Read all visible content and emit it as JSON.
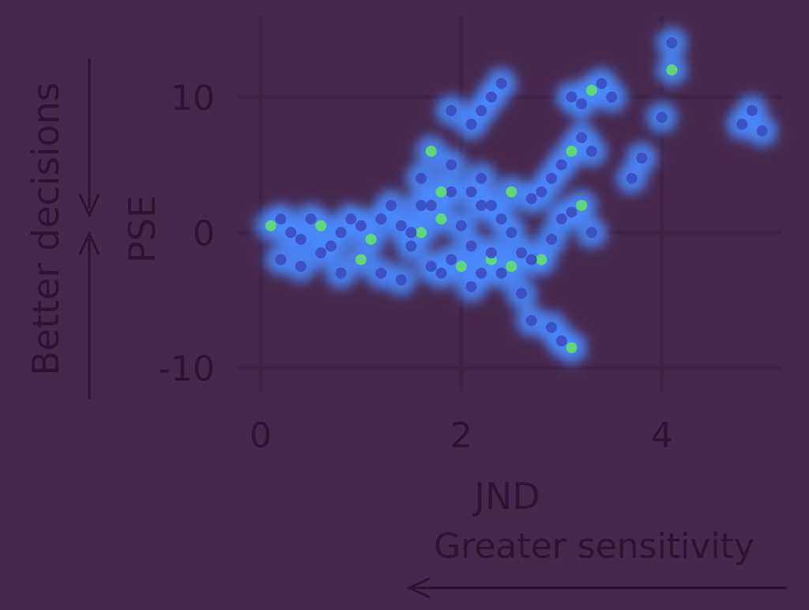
{
  "chart_data": {
    "type": "scatter",
    "title": "",
    "xlabel": "JND",
    "ylabel": "PSE",
    "x_annotation": "Greater sensitivity",
    "y_annotation": "Better decisions",
    "xlim": [
      0,
      5.2
    ],
    "ylim": [
      -12,
      16
    ],
    "xticks": [
      "0",
      "2",
      "4"
    ],
    "yticks": [
      "10",
      "0",
      "-10"
    ],
    "grid": true,
    "colors": {
      "background": "#46284f",
      "grid": "#3e2347",
      "text": "#2a1430",
      "point": "#3b4ec0",
      "glow": "#4a8bff",
      "hot": "#63e06a"
    },
    "series": [
      {
        "x": [
          0.1,
          0.2,
          0.3,
          0.4,
          0.5,
          0.6,
          0.7,
          0.8,
          0.9,
          1.0,
          1.1,
          1.2,
          1.3,
          1.4,
          1.5,
          1.6,
          0.2,
          0.4,
          0.6,
          0.8,
          1.0,
          1.2,
          1.4,
          1.5,
          1.6,
          1.8,
          1.9,
          2.0,
          2.1,
          2.2,
          2.3,
          2.4,
          2.5,
          2.6,
          2.7,
          2.8,
          2.9,
          1.7,
          1.8,
          1.9,
          2.0,
          2.1,
          2.2,
          2.3,
          2.4,
          2.5,
          2.6,
          2.7,
          1.6,
          1.7,
          1.8,
          1.9,
          2.1,
          2.2,
          2.3,
          2.5,
          2.1,
          2.2,
          2.3,
          2.4,
          1.7,
          1.9,
          2.8,
          2.9,
          3.0,
          3.1,
          3.2,
          3.3,
          3.1,
          3.2,
          3.3,
          3.4,
          3.5,
          3.0,
          3.1,
          3.2,
          3.3,
          2.7,
          2.9,
          3.0,
          3.1,
          4.0,
          3.8,
          3.7,
          4.1,
          4.1,
          4.8,
          4.9,
          5.0
        ],
        "y": [
          0.5,
          1,
          0,
          -0.5,
          1,
          0.5,
          -1,
          0,
          1,
          0.5,
          -0.5,
          1,
          2,
          0.5,
          -1,
          0,
          -2,
          -2.5,
          -1.5,
          -3,
          -2,
          -3,
          -3.5,
          0,
          2,
          1,
          3,
          0.5,
          -1,
          2,
          -2,
          1,
          0,
          -1.5,
          2.5,
          -2,
          -0.5,
          -2.5,
          -3,
          -2,
          -2.5,
          -4,
          -3,
          -1.5,
          -3,
          -2.5,
          -4.5,
          -2,
          4,
          2,
          3,
          5,
          3,
          4,
          2,
          3,
          8,
          9,
          10,
          11,
          6,
          9,
          3,
          4,
          5,
          6,
          7,
          6,
          10,
          9.5,
          10.5,
          11,
          10,
          1,
          1.5,
          2,
          0,
          -6.5,
          -7,
          -8,
          -8.5,
          8.5,
          5.5,
          4,
          14,
          12,
          8,
          9,
          7.5
        ]
      }
    ]
  }
}
